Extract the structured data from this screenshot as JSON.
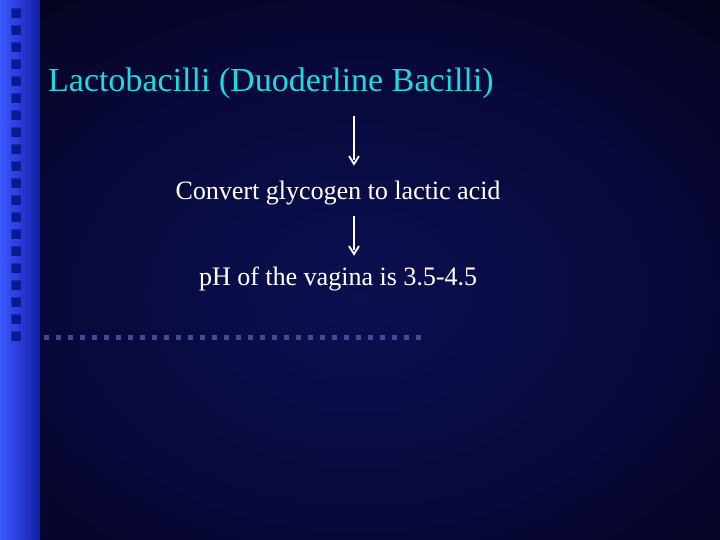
{
  "slide": {
    "title": "Lactobacilli (Duoderline Bacilli)",
    "line1": "Convert glycogen to lactic acid",
    "line2": "pH of the vagina is 3.5-4.5"
  },
  "style": {
    "title_color": "#20d8e0",
    "body_color": "#ffffff",
    "arrow_color": "#ffffff",
    "title_fontsize": 34,
    "body_fontsize": 26,
    "background_gradient_center": "#0a1050",
    "background_gradient_edge": "#000000",
    "stripe_gradient_from": "#3a5aff",
    "stripe_gradient_to": "#1020a0",
    "decor_square_color": "#0a1a90",
    "arrow1_length": 48,
    "arrow2_length": 40,
    "decor_vertical_squares": 20,
    "decor_horizontal_squares": 32
  }
}
